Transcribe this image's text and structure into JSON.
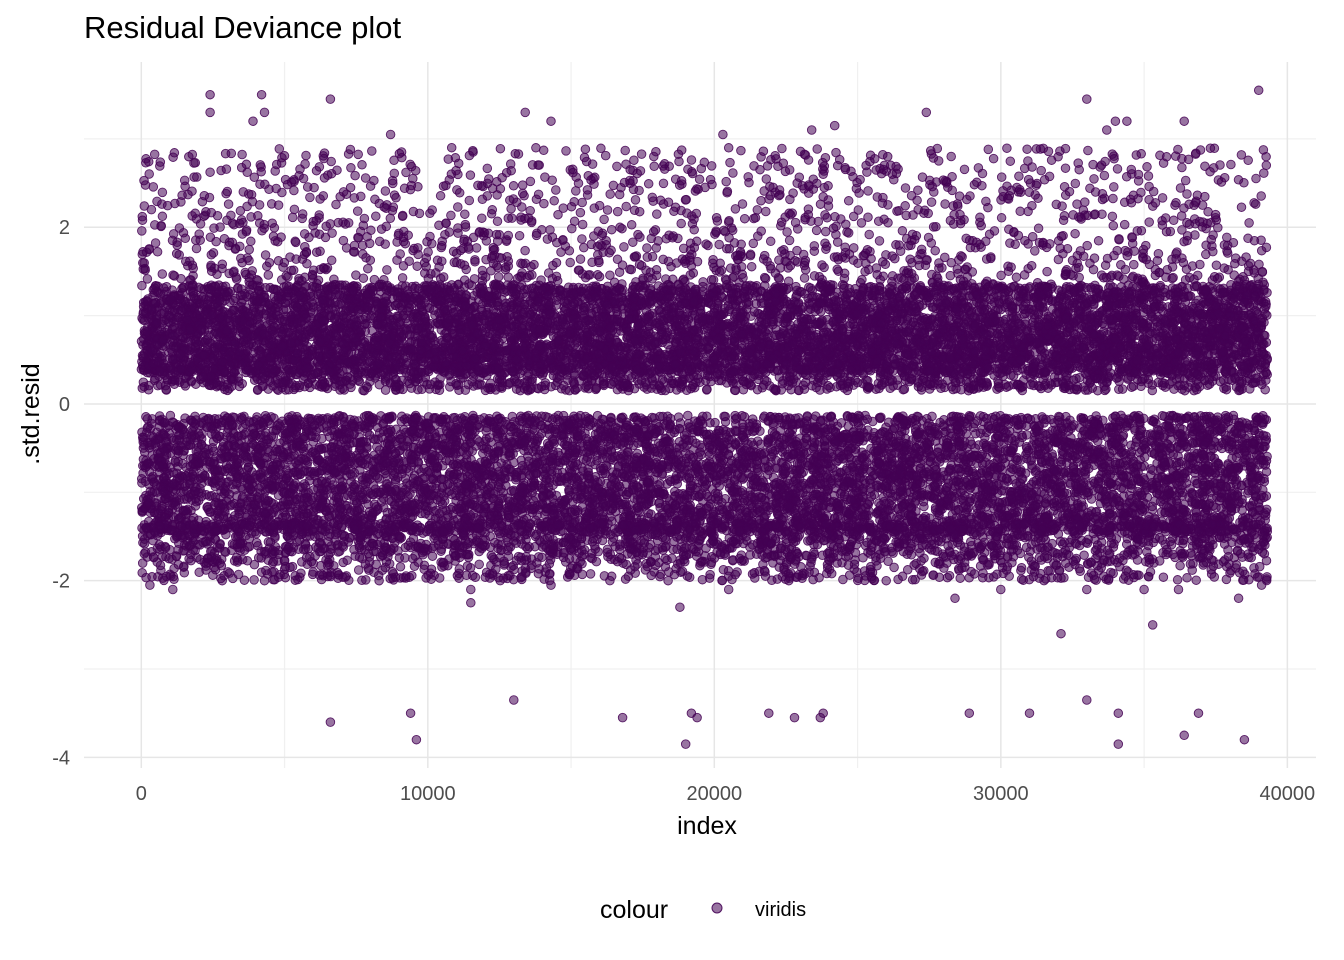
{
  "chart_data": {
    "type": "scatter",
    "title": "Residual Deviance plot",
    "xlabel": "index",
    "ylabel": ".std.resid",
    "xlim": [
      -2000,
      41000
    ],
    "ylim": [
      -4.12,
      3.87
    ],
    "x_ticks": [
      0,
      10000,
      20000,
      30000,
      40000
    ],
    "x_tick_labels": [
      "0",
      "10000",
      "20000",
      "30000",
      "40000"
    ],
    "y_ticks": [
      -4,
      -2,
      0,
      2
    ],
    "y_tick_labels": [
      "-4",
      "-2",
      "0",
      "2"
    ],
    "grid": true,
    "legend": {
      "title": "colour",
      "position": "bottom",
      "entries": [
        "viridis"
      ]
    },
    "point_color": "#440154",
    "point_alpha": 0.55,
    "n_points": 39300,
    "bands": [
      {
        "name": "negative",
        "x_range": [
          0,
          39300
        ],
        "y_range": [
          -1.45,
          -0.13
        ],
        "density": "very dense"
      },
      {
        "name": "positive",
        "x_range": [
          0,
          39300
        ],
        "y_range": [
          0.15,
          2.3
        ],
        "density": "dense"
      }
    ],
    "points": [
      {
        "x": 2400,
        "y": 3.5
      },
      {
        "x": 4200,
        "y": 3.5
      },
      {
        "x": 2400,
        "y": 3.3
      },
      {
        "x": 4300,
        "y": 3.3
      },
      {
        "x": 6600,
        "y": 3.45
      },
      {
        "x": 3900,
        "y": 3.2
      },
      {
        "x": 13400,
        "y": 3.3
      },
      {
        "x": 14300,
        "y": 3.2
      },
      {
        "x": 27400,
        "y": 3.3
      },
      {
        "x": 33000,
        "y": 3.45
      },
      {
        "x": 36400,
        "y": 3.2
      },
      {
        "x": 39000,
        "y": 3.55
      },
      {
        "x": 24200,
        "y": 3.15
      },
      {
        "x": 34000,
        "y": 3.2
      },
      {
        "x": 34400,
        "y": 3.2
      },
      {
        "x": 33700,
        "y": 3.1
      },
      {
        "x": 8700,
        "y": 3.05
      },
      {
        "x": 20300,
        "y": 3.05
      },
      {
        "x": 23400,
        "y": 3.1
      },
      {
        "x": 300,
        "y": -2.05
      },
      {
        "x": 1100,
        "y": -2.1
      },
      {
        "x": 4300,
        "y": -2.0
      },
      {
        "x": 8300,
        "y": -2.0
      },
      {
        "x": 11500,
        "y": -2.1
      },
      {
        "x": 11500,
        "y": -2.25
      },
      {
        "x": 14300,
        "y": -2.05
      },
      {
        "x": 17000,
        "y": -1.95
      },
      {
        "x": 18800,
        "y": -2.3
      },
      {
        "x": 20500,
        "y": -2.1
      },
      {
        "x": 22600,
        "y": -2.0
      },
      {
        "x": 26000,
        "y": -2.0
      },
      {
        "x": 28400,
        "y": -2.2
      },
      {
        "x": 30000,
        "y": -2.1
      },
      {
        "x": 32100,
        "y": -2.6
      },
      {
        "x": 33000,
        "y": -2.1
      },
      {
        "x": 35000,
        "y": -2.1
      },
      {
        "x": 35300,
        "y": -2.5
      },
      {
        "x": 36200,
        "y": -2.1
      },
      {
        "x": 38300,
        "y": -2.2
      },
      {
        "x": 39100,
        "y": -2.05
      },
      {
        "x": 6600,
        "y": -3.6
      },
      {
        "x": 9400,
        "y": -3.5
      },
      {
        "x": 9600,
        "y": -3.8
      },
      {
        "x": 13000,
        "y": -3.35
      },
      {
        "x": 16800,
        "y": -3.55
      },
      {
        "x": 19000,
        "y": -3.85
      },
      {
        "x": 19200,
        "y": -3.5
      },
      {
        "x": 19400,
        "y": -3.55
      },
      {
        "x": 21900,
        "y": -3.5
      },
      {
        "x": 22800,
        "y": -3.55
      },
      {
        "x": 23700,
        "y": -3.55
      },
      {
        "x": 23800,
        "y": -3.5
      },
      {
        "x": 28900,
        "y": -3.5
      },
      {
        "x": 31000,
        "y": -3.5
      },
      {
        "x": 33000,
        "y": -3.35
      },
      {
        "x": 34100,
        "y": -3.5
      },
      {
        "x": 34100,
        "y": -3.85
      },
      {
        "x": 36400,
        "y": -3.75
      },
      {
        "x": 36900,
        "y": -3.5
      },
      {
        "x": 38500,
        "y": -3.8
      }
    ]
  }
}
